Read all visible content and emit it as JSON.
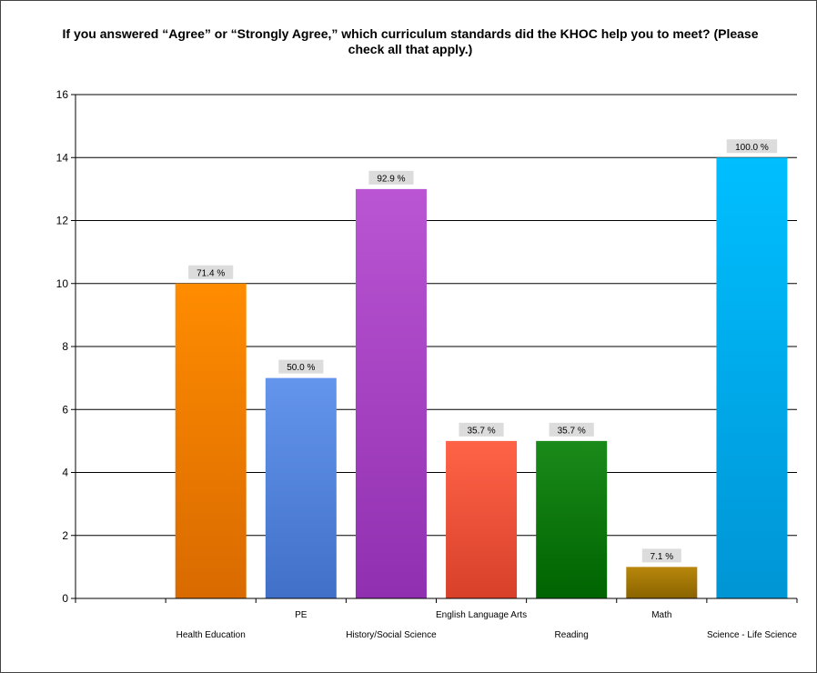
{
  "chart_data": {
    "type": "bar",
    "title": "If you answered “Agree” or “Strongly Agree,” which curriculum standards did the KHOC help you to meet? (Please check all that apply.)",
    "categories": [
      "Health Education",
      "PE",
      "History/Social Science",
      "English Language Arts",
      "Reading",
      "Math",
      "Science - Life Science"
    ],
    "values": [
      10,
      7,
      13,
      5,
      5,
      1,
      14
    ],
    "data_labels": [
      "71.4 %",
      "50.0 %",
      "92.9 %",
      "35.7 %",
      "35.7 %",
      "7.1 %",
      "100.0 %"
    ],
    "colors": [
      "#ff8c00",
      "#6495ed",
      "#ba55d3",
      "#ff6347",
      "#1a8a1a",
      "#b8860b",
      "#00bfff"
    ],
    "dark_colors": [
      "#d96a00",
      "#4070c8",
      "#9030b0",
      "#d8402a",
      "#006400",
      "#8a6400",
      "#0095d5"
    ],
    "ylim": [
      0,
      16
    ],
    "yticks": [
      0,
      2,
      4,
      6,
      8,
      10,
      12,
      14,
      16
    ],
    "grid": true,
    "legend": false,
    "xlabel": "",
    "ylabel": ""
  }
}
